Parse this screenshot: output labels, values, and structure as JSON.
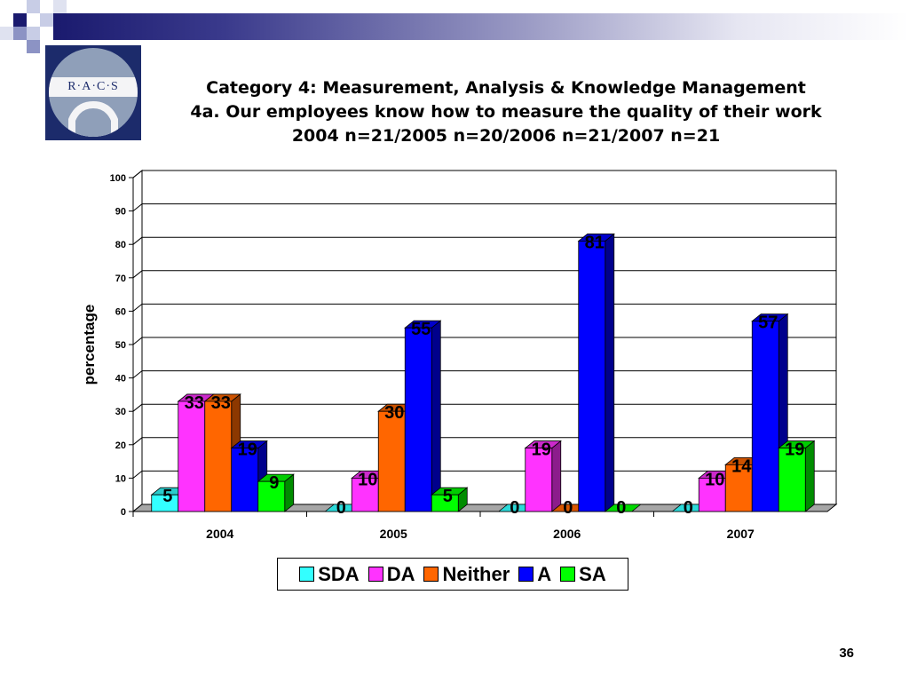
{
  "header": {
    "title_lines": [
      "Category 4: Measurement, Analysis & Knowledge Management",
      "4a. Our employees know how to measure the quality of their work",
      "2004 n=21/2005 n=20/2006 n=21/2007 n=21"
    ],
    "logo_text": "R·A·C·S"
  },
  "page_number": "36",
  "colors": {
    "SDA": "#33ffff",
    "DA": "#ff33ff",
    "Neither": "#ff6600",
    "A": "#0000ff",
    "SA": "#00ff00",
    "header_dark": "#1a1a6e",
    "logo_bg": "#1c2b6b"
  },
  "chart_data": {
    "type": "bar",
    "title": "",
    "xlabel": "",
    "ylabel": "percentage",
    "ylim": [
      0,
      100
    ],
    "yticks": [
      "0",
      "10",
      "20",
      "30",
      "40",
      "50",
      "60",
      "70",
      "80",
      "90",
      "100"
    ],
    "categories": [
      "2004",
      "2005",
      "2006",
      "2007"
    ],
    "series": [
      {
        "name": "SDA",
        "values": [
          5,
          0,
          0,
          0
        ],
        "labels": [
          "5",
          "0",
          "0",
          "0"
        ]
      },
      {
        "name": "DA",
        "values": [
          33,
          10,
          19,
          10
        ],
        "labels": [
          "33",
          "10",
          "19",
          "10"
        ]
      },
      {
        "name": "Neither",
        "values": [
          33,
          30,
          0,
          14
        ],
        "labels": [
          "33",
          "30",
          "0",
          "14"
        ]
      },
      {
        "name": "A",
        "values": [
          19,
          55,
          81,
          57
        ],
        "labels": [
          "19",
          "55",
          "81",
          "57"
        ]
      },
      {
        "name": "SA",
        "values": [
          9,
          5,
          0,
          19
        ],
        "labels": [
          "9",
          "5",
          "0",
          "19"
        ]
      }
    ],
    "grid": true,
    "legend_position": "bottom",
    "style": "3d-bar"
  }
}
